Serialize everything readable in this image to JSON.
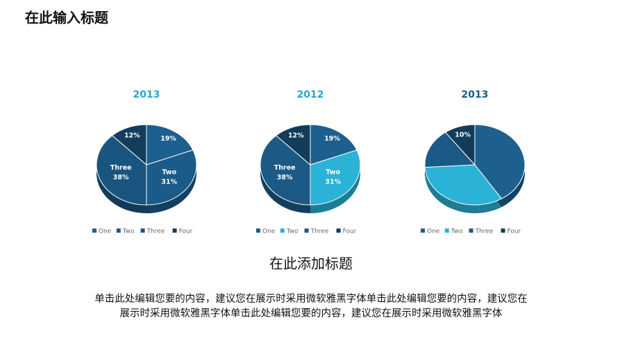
{
  "header": {
    "title": "在此输入标题"
  },
  "chart_data": [
    {
      "type": "pie",
      "title": "2013",
      "title_color": "#2aa6c8",
      "categories": [
        "One",
        "Two",
        "Three",
        "Four"
      ],
      "values": [
        19,
        31,
        38,
        12
      ],
      "value_labels": [
        "19%",
        "31%",
        "38%",
        "12%"
      ],
      "colors": [
        "#1d5f8e",
        "#1b5b89",
        "#1a5580",
        "#133d5c"
      ]
    },
    {
      "type": "pie",
      "title": "2012",
      "title_color": "#2aa6c8",
      "categories": [
        "One",
        "Two",
        "Three",
        "Four"
      ],
      "values": [
        19,
        31,
        38,
        12
      ],
      "value_labels": [
        "19%",
        "31%",
        "38%",
        "12%"
      ],
      "colors": [
        "#1d5f8e",
        "#2ab3d6",
        "#1b5a86",
        "#123c5a"
      ]
    },
    {
      "type": "pie",
      "title": "2013",
      "title_color": "#1b5a86",
      "categories": [
        "One",
        "Two",
        "Three",
        "Four"
      ],
      "values": [
        41,
        33,
        16,
        10
      ],
      "value_labels": [
        null,
        null,
        null,
        "10%"
      ],
      "colors": [
        "#1d5f8e",
        "#2ab3d6",
        "#1b5a86",
        "#123c5a"
      ]
    }
  ],
  "footer": {
    "heading": "在此添加标题",
    "body": [
      "单击此处编辑您要的内容，建议您在展示时采用微软雅黑字体单击此处编辑您要的内容，建议您在",
      "展示时采用微软雅黑字体单击此处编辑您要的内容，建议您在展示时采用微软雅黑字体"
    ]
  }
}
